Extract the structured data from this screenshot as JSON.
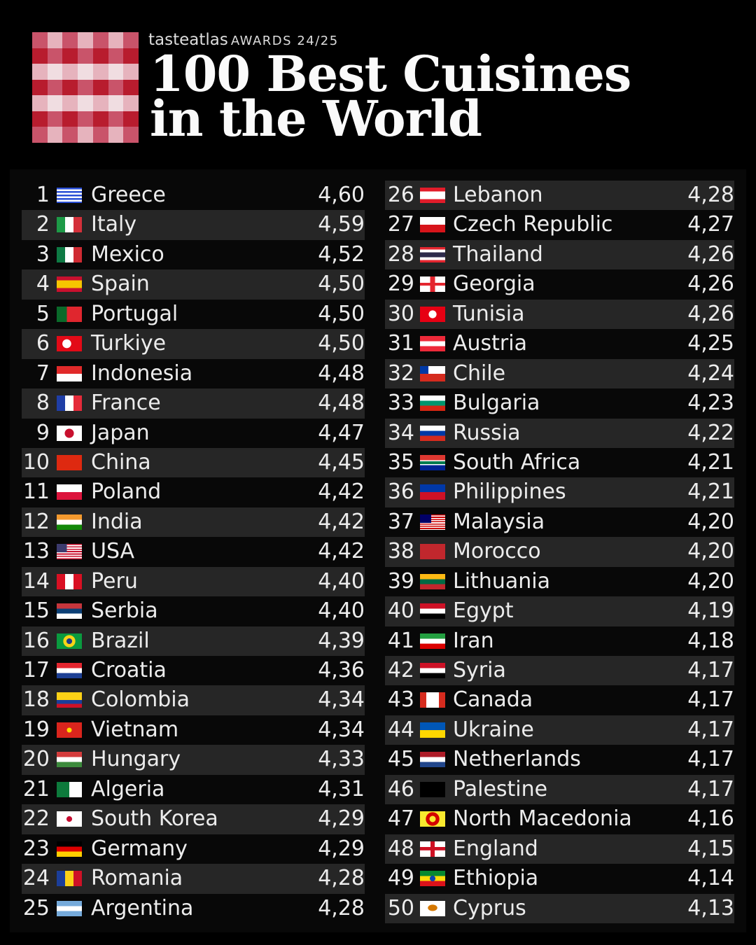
{
  "header": {
    "brand": "tasteatlas",
    "awards": "AWARDS 24/25",
    "title_line1": "100 Best Cuisines",
    "title_line2": "in the World"
  },
  "colors": {
    "logo_dark": "#b81c2e",
    "logo_mid": "#c9546a",
    "logo_light": "#e6b3bd",
    "logo_lighter": "#f0dde1",
    "row_stripe": "#262626"
  },
  "rankings": [
    {
      "rank": "1",
      "flag": "gr",
      "country": "Greece",
      "score": "4,60"
    },
    {
      "rank": "2",
      "flag": "it",
      "country": "Italy",
      "score": "4,59"
    },
    {
      "rank": "3",
      "flag": "mx",
      "country": "Mexico",
      "score": "4,52"
    },
    {
      "rank": "4",
      "flag": "es",
      "country": "Spain",
      "score": "4,50"
    },
    {
      "rank": "5",
      "flag": "pt",
      "country": "Portugal",
      "score": "4,50"
    },
    {
      "rank": "6",
      "flag": "tr",
      "country": "Turkiye",
      "score": "4,50"
    },
    {
      "rank": "7",
      "flag": "id",
      "country": "Indonesia",
      "score": "4,48"
    },
    {
      "rank": "8",
      "flag": "fr",
      "country": "France",
      "score": "4,48"
    },
    {
      "rank": "9",
      "flag": "jp",
      "country": "Japan",
      "score": "4,47"
    },
    {
      "rank": "10",
      "flag": "cn",
      "country": "China",
      "score": "4,45"
    },
    {
      "rank": "11",
      "flag": "pl",
      "country": "Poland",
      "score": "4,42"
    },
    {
      "rank": "12",
      "flag": "in",
      "country": "India",
      "score": "4,42"
    },
    {
      "rank": "13",
      "flag": "us",
      "country": "USA",
      "score": "4,42"
    },
    {
      "rank": "14",
      "flag": "pe",
      "country": "Peru",
      "score": "4,40"
    },
    {
      "rank": "15",
      "flag": "rs",
      "country": "Serbia",
      "score": "4,40"
    },
    {
      "rank": "16",
      "flag": "br",
      "country": "Brazil",
      "score": "4,39"
    },
    {
      "rank": "17",
      "flag": "hr",
      "country": "Croatia",
      "score": "4,36"
    },
    {
      "rank": "18",
      "flag": "co",
      "country": "Colombia",
      "score": "4,34"
    },
    {
      "rank": "19",
      "flag": "vn",
      "country": "Vietnam",
      "score": "4,34"
    },
    {
      "rank": "20",
      "flag": "hu",
      "country": "Hungary",
      "score": "4,33"
    },
    {
      "rank": "21",
      "flag": "dz",
      "country": "Algeria",
      "score": "4,31"
    },
    {
      "rank": "22",
      "flag": "kr",
      "country": "South Korea",
      "score": "4,29"
    },
    {
      "rank": "23",
      "flag": "de",
      "country": "Germany",
      "score": "4,29"
    },
    {
      "rank": "24",
      "flag": "ro",
      "country": "Romania",
      "score": "4,28"
    },
    {
      "rank": "25",
      "flag": "ar",
      "country": "Argentina",
      "score": "4,28"
    },
    {
      "rank": "26",
      "flag": "lb",
      "country": "Lebanon",
      "score": "4,28"
    },
    {
      "rank": "27",
      "flag": "cz",
      "country": "Czech Republic",
      "score": "4,27"
    },
    {
      "rank": "28",
      "flag": "th",
      "country": "Thailand",
      "score": "4,26"
    },
    {
      "rank": "29",
      "flag": "ge",
      "country": "Georgia",
      "score": "4,26"
    },
    {
      "rank": "30",
      "flag": "tn",
      "country": "Tunisia",
      "score": "4,26"
    },
    {
      "rank": "31",
      "flag": "at",
      "country": "Austria",
      "score": "4,25"
    },
    {
      "rank": "32",
      "flag": "cl",
      "country": "Chile",
      "score": "4,24"
    },
    {
      "rank": "33",
      "flag": "bg",
      "country": "Bulgaria",
      "score": "4,23"
    },
    {
      "rank": "34",
      "flag": "ru",
      "country": "Russia",
      "score": "4,22"
    },
    {
      "rank": "35",
      "flag": "za",
      "country": "South Africa",
      "score": "4,21"
    },
    {
      "rank": "36",
      "flag": "ph",
      "country": "Philippines",
      "score": "4,21"
    },
    {
      "rank": "37",
      "flag": "my",
      "country": "Malaysia",
      "score": "4,20"
    },
    {
      "rank": "38",
      "flag": "ma",
      "country": "Morocco",
      "score": "4,20"
    },
    {
      "rank": "39",
      "flag": "lt",
      "country": "Lithuania",
      "score": "4,20"
    },
    {
      "rank": "40",
      "flag": "eg",
      "country": "Egypt",
      "score": "4,19"
    },
    {
      "rank": "41",
      "flag": "ir",
      "country": "Iran",
      "score": "4,18"
    },
    {
      "rank": "42",
      "flag": "sy",
      "country": "Syria",
      "score": "4,17"
    },
    {
      "rank": "43",
      "flag": "ca",
      "country": "Canada",
      "score": "4,17"
    },
    {
      "rank": "44",
      "flag": "ua",
      "country": "Ukraine",
      "score": "4,17"
    },
    {
      "rank": "45",
      "flag": "nl",
      "country": "Netherlands",
      "score": "4,17"
    },
    {
      "rank": "46",
      "flag": "ps",
      "country": "Palestine",
      "score": "4,17"
    },
    {
      "rank": "47",
      "flag": "mk",
      "country": "North Macedonia",
      "score": "4,16"
    },
    {
      "rank": "48",
      "flag": "gb-eng",
      "country": "England",
      "score": "4,15"
    },
    {
      "rank": "49",
      "flag": "et",
      "country": "Ethiopia",
      "score": "4,14"
    },
    {
      "rank": "50",
      "flag": "cy",
      "country": "Cyprus",
      "score": "4,13"
    }
  ]
}
